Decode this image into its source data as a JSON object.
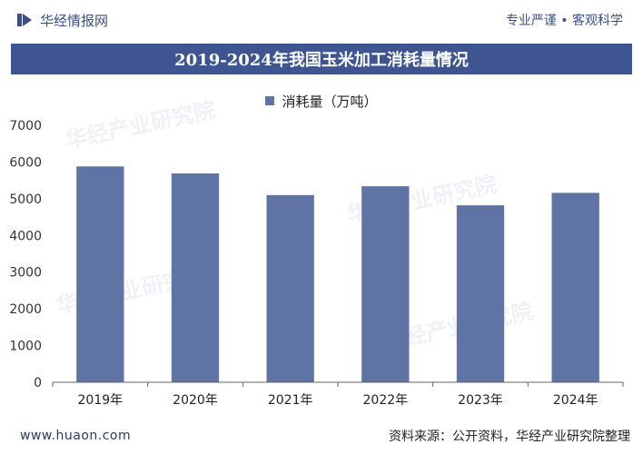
{
  "header": {
    "brand": "华经情报网",
    "slogan": "专业严谨 • 客观科学"
  },
  "footer": {
    "site": "www.huaon.com",
    "source": "资料来源：公开资料，华经产业研究院整理"
  },
  "watermark_text": "华经产业研究院",
  "colors": {
    "bar": "#5f74a4",
    "title_band": "#3e5592",
    "brand": "#3b4f86"
  },
  "chart_data": {
    "type": "bar",
    "title": "2019-2024年我国玉米加工消耗量情况",
    "categories": [
      "2019年",
      "2020年",
      "2021年",
      "2022年",
      "2023年",
      "2024年"
    ],
    "series": [
      {
        "name": "消耗量（万吨）",
        "values": [
          5880,
          5690,
          5100,
          5340,
          4820,
          5160
        ]
      }
    ],
    "ylim": [
      0,
      7000
    ],
    "yticks": [
      0,
      1000,
      2000,
      3000,
      4000,
      5000,
      6000,
      7000
    ],
    "xlabel": "",
    "ylabel": "",
    "legend": "top-center",
    "grid": false
  }
}
